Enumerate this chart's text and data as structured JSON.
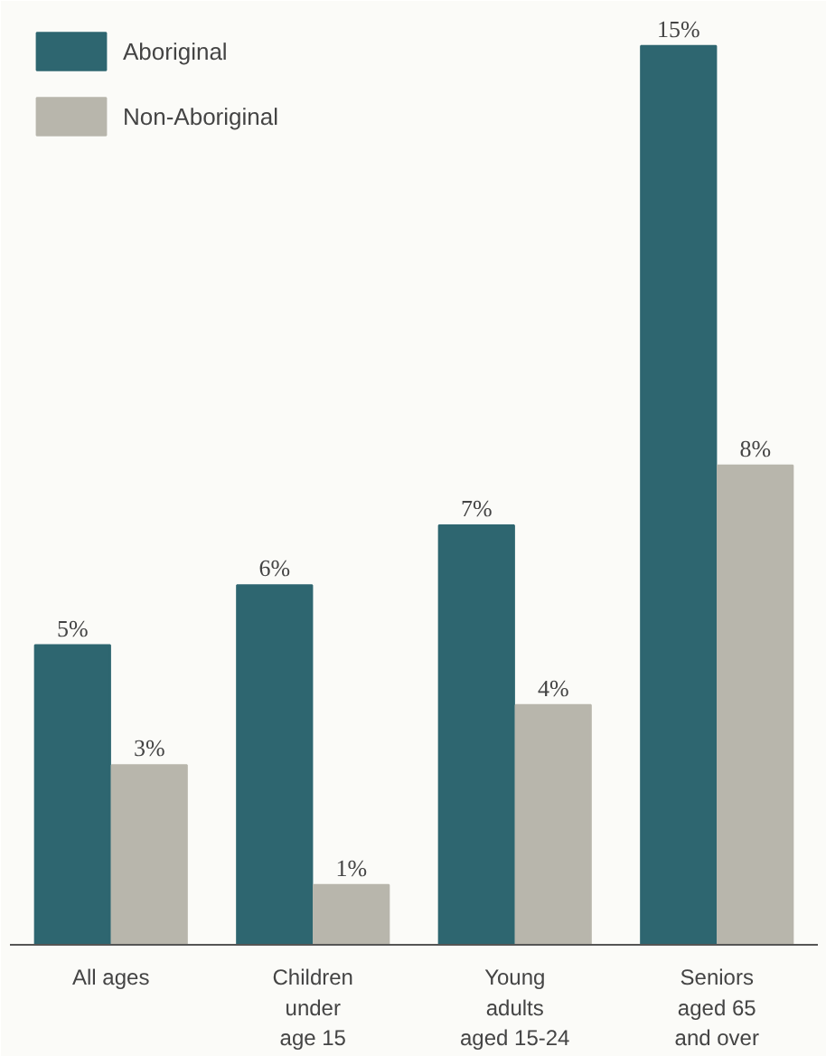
{
  "chart_data": {
    "type": "bar",
    "categories": [
      "All ages",
      "Children\nunder\nage 15",
      "Young\nadults\naged 15-24",
      "Seniors\naged 65\nand over"
    ],
    "series": [
      {
        "name": "Aboriginal",
        "color": "#2e6670",
        "values": [
          5,
          6,
          7,
          15
        ],
        "value_labels": [
          "5%",
          "6%",
          "7%",
          "15%"
        ]
      },
      {
        "name": "Non-Aboriginal",
        "color": "#b8b6ac",
        "values": [
          3,
          1,
          4,
          8
        ],
        "value_labels": [
          "3%",
          "1%",
          "4%",
          "8%"
        ]
      }
    ],
    "ylim": [
      0,
      15.6
    ],
    "legend": "top left",
    "grid": false
  }
}
